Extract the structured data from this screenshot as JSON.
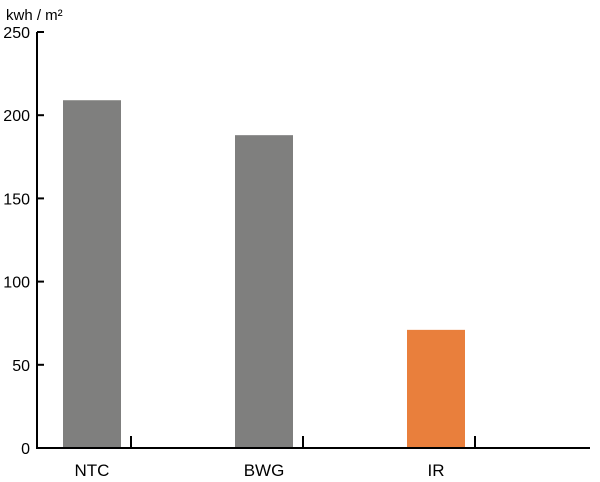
{
  "chart_data": {
    "type": "bar",
    "categories": [
      "NTC",
      "BWG",
      "IR"
    ],
    "values": [
      209,
      188,
      71
    ],
    "colors": [
      "#7f7f7e",
      "#7f7f7e",
      "#e97f3c"
    ],
    "title": "",
    "xlabel": "",
    "ylabel": "kwh / m²",
    "ylim": [
      0,
      250
    ],
    "yticks": [
      0,
      50,
      100,
      150,
      200,
      250
    ],
    "grid": false,
    "legend": "none"
  },
  "colors": {
    "default_bar": "#7f7f7e",
    "highlight_bar": "#e97f3c",
    "axis": "#000000"
  }
}
